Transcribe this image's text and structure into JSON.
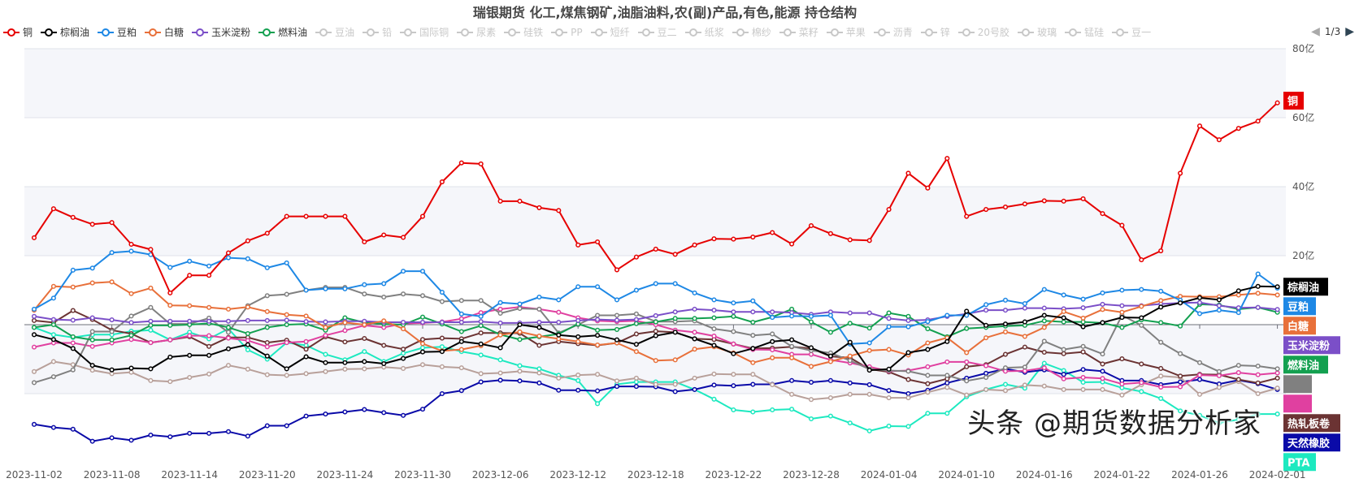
{
  "title": "瑞银期货 化工,煤焦钢矿,油脂油料,农(副)产品,有色,能源 持仓结构",
  "legend": {
    "items": [
      {
        "name": "铜",
        "active": true,
        "color": "#e60000"
      },
      {
        "name": "棕榈油",
        "active": true,
        "color": "#000000"
      },
      {
        "name": "豆粕",
        "active": true,
        "color": "#1e88e5"
      },
      {
        "name": "白糖",
        "active": true,
        "color": "#e8703a"
      },
      {
        "name": "玉米淀粉",
        "active": true,
        "color": "#7b4fc8"
      },
      {
        "name": "燃料油",
        "active": true,
        "color": "#13a050"
      },
      {
        "name": "豆油",
        "active": false
      },
      {
        "name": "铅",
        "active": false
      },
      {
        "name": "国际铜",
        "active": false
      },
      {
        "name": "尿素",
        "active": false
      },
      {
        "name": "硅铁",
        "active": false
      },
      {
        "name": "PP",
        "active": false
      },
      {
        "name": "短纤",
        "active": false
      },
      {
        "name": "豆二",
        "active": false
      },
      {
        "name": "纸浆",
        "active": false
      },
      {
        "name": "棉纱",
        "active": false
      },
      {
        "name": "菜籽",
        "active": false
      },
      {
        "name": "苹果",
        "active": false
      },
      {
        "name": "沥青",
        "active": false
      },
      {
        "name": "锌",
        "active": false
      },
      {
        "name": "20号胶",
        "active": false
      },
      {
        "name": "玻璃",
        "active": false
      },
      {
        "name": "锰硅",
        "active": false
      },
      {
        "name": "豆一",
        "active": false
      }
    ],
    "page": "1/3",
    "prev_icon": "triangle-left-icon",
    "next_icon": "triangle-right-icon"
  },
  "watermark": "头条 @期货数据分析家",
  "chart_data": {
    "type": "line",
    "title": "瑞银期货 化工,煤焦钢矿,油脂油料,农(副)产品,有色,能源 持仓结构",
    "ylim": [
      -40,
      80
    ],
    "y_ticks": [
      "80亿",
      "60亿",
      "40亿",
      "20亿"
    ],
    "y_tick_values": [
      80,
      60,
      40,
      20
    ],
    "y_axis_position": "right",
    "grid": true,
    "legend_position": "top",
    "x": [
      "2023-11-02",
      "2023-11-03",
      "2023-11-06",
      "2023-11-07",
      "2023-11-08",
      "2023-11-09",
      "2023-11-10",
      "2023-11-13",
      "2023-11-14",
      "2023-11-15",
      "2023-11-16",
      "2023-11-17",
      "2023-11-20",
      "2023-11-21",
      "2023-11-22",
      "2023-11-23",
      "2023-11-24",
      "2023-11-27",
      "2023-11-28",
      "2023-11-29",
      "2023-11-30",
      "2023-12-01",
      "2023-12-04",
      "2023-12-05",
      "2023-12-06",
      "2023-12-07",
      "2023-12-08",
      "2023-12-11",
      "2023-12-12",
      "2023-12-13",
      "2023-12-14",
      "2023-12-15",
      "2023-12-18",
      "2023-12-19",
      "2023-12-20",
      "2023-12-21",
      "2023-12-22",
      "2023-12-25",
      "2023-12-26",
      "2023-12-27",
      "2023-12-28",
      "2023-12-29",
      "2024-01-02",
      "2024-01-03",
      "2024-01-04",
      "2024-01-05",
      "2024-01-08",
      "2024-01-09",
      "2024-01-10",
      "2024-01-11",
      "2024-01-12",
      "2024-01-15",
      "2024-01-16",
      "2024-01-17",
      "2024-01-18",
      "2024-01-19",
      "2024-01-22",
      "2024-01-23",
      "2024-01-24",
      "2024-01-25",
      "2024-01-26",
      "2024-01-29",
      "2024-01-30",
      "2024-01-31",
      "2024-02-01"
    ],
    "x_tick_every": 4,
    "series": [
      {
        "name": "铜",
        "end_label": "铜",
        "color": "#e60000",
        "values": [
          25.2,
          33.6,
          31.1,
          29.1,
          29.6,
          23.3,
          21.8,
          9.2,
          14.3,
          14.3,
          20.8,
          24.3,
          26.5,
          31.4,
          31.4,
          31.4,
          31.4,
          24.0,
          26.0,
          25.3,
          31.4,
          41.4,
          46.9,
          46.6,
          35.8,
          35.8,
          33.9,
          33.1,
          23.1,
          24.0,
          15.9,
          19.6,
          21.9,
          20.4,
          23.1,
          24.9,
          24.8,
          25.4,
          26.7,
          23.4,
          28.7,
          26.4,
          24.6,
          24.4,
          33.4,
          43.9,
          39.6,
          48.2,
          31.4,
          33.4,
          34.1,
          35.0,
          35.9,
          35.8,
          36.5,
          32.2,
          28.8,
          18.8,
          21.4,
          43.9,
          57.6,
          53.6,
          56.9,
          59.0,
          64.3
        ]
      },
      {
        "name": "棕榈油",
        "end_label": "棕榈油",
        "color": "#000000",
        "values": [
          -2.9,
          -4.3,
          -6.9,
          -11.8,
          -13.1,
          -12.6,
          -12.8,
          -9.4,
          -8.9,
          -8.9,
          -7.0,
          -5.8,
          -9.1,
          -12.8,
          -9.3,
          -11.0,
          -11.0,
          -10.7,
          -11.3,
          -9.8,
          -7.9,
          -7.8,
          -4.9,
          -5.6,
          -6.7,
          0,
          -0.8,
          -3.0,
          -3.5,
          -3.1,
          -4.4,
          -5.7,
          -3.2,
          -2.2,
          -4.1,
          -6.0,
          -8.4,
          -6.9,
          -4.9,
          -4.4,
          -6.7,
          -9.1,
          -5.1,
          -13.2,
          -12.9,
          -8.1,
          -7.2,
          -4.9,
          3.9,
          -0.2,
          0.2,
          0.8,
          2.7,
          2.0,
          -0.6,
          0.6,
          2.1,
          2.0,
          5.1,
          6.3,
          7.8,
          7.2,
          9.8,
          11.1,
          11.0
        ]
      },
      {
        "name": "豆粕",
        "end_label": "豆粕",
        "color": "#1e88e5",
        "values": [
          4.5,
          7.7,
          15.8,
          16.4,
          20.9,
          21.3,
          20.3,
          16.6,
          18.4,
          17.0,
          19.4,
          19.1,
          16.5,
          17.9,
          10.0,
          10.4,
          10.4,
          11.6,
          11.9,
          15.5,
          15.5,
          9.4,
          3.1,
          2.4,
          6.4,
          6.0,
          8.0,
          7.2,
          11.0,
          11.0,
          7.2,
          10.0,
          11.9,
          11.9,
          9.2,
          7.2,
          6.3,
          6.9,
          2.1,
          2.5,
          2.4,
          2.7,
          -5.6,
          -5.3,
          -0.6,
          -0.6,
          0.9,
          2.7,
          2.7,
          5.8,
          7.1,
          6.1,
          10.2,
          8.6,
          7.4,
          9.2,
          10.0,
          10.2,
          9.7,
          7.1,
          3.2,
          4.2,
          3.5,
          14.7,
          10.6
        ]
      },
      {
        "name": "白糖",
        "end_label": "白糖",
        "color": "#e8703a",
        "values": [
          4.2,
          11.1,
          10.9,
          12.1,
          12.4,
          9.0,
          10.6,
          5.6,
          5.5,
          5.0,
          4.5,
          5.1,
          3.8,
          2.9,
          2.5,
          -0.8,
          0.6,
          0,
          1.1,
          -1.2,
          -5.5,
          -7.6,
          -7.2,
          -6.1,
          -3.0,
          -2.1,
          -3.3,
          -4.1,
          -4.9,
          -5.9,
          -5.3,
          -7.8,
          -10.4,
          -10.2,
          -7.1,
          -6.4,
          -8.2,
          -11.0,
          -9.6,
          -9.6,
          -12.1,
          -10.7,
          -9.1,
          -7.5,
          -7.2,
          -8.8,
          -5.3,
          -3.8,
          -8.1,
          -3.8,
          -2.1,
          -3.4,
          -0.8,
          3.8,
          1.9,
          4.4,
          3.6,
          5.3,
          7.0,
          8.2,
          8.1,
          8.1,
          8.6,
          9.1,
          8.6
        ]
      },
      {
        "name": "玉米淀粉",
        "end_label": "玉米淀粉",
        "color": "#7b4fc8",
        "values": [
          2.4,
          1.5,
          1.3,
          2.0,
          1.4,
          0.6,
          1.0,
          1.0,
          1.0,
          1.0,
          1.0,
          1.2,
          1.2,
          1.3,
          0.9,
          0.8,
          1.0,
          1.0,
          0.7,
          0.7,
          0.7,
          0.7,
          0.7,
          0.9,
          0.5,
          0.5,
          0.7,
          0.7,
          1.2,
          1.5,
          1.3,
          1.5,
          2.6,
          3.7,
          4.5,
          4.2,
          3.7,
          3.7,
          3.7,
          3.5,
          3.0,
          3.7,
          3.4,
          3.4,
          1.8,
          1.2,
          1.4,
          2.4,
          3.1,
          4.2,
          4.2,
          4.8,
          4.8,
          4.6,
          4.9,
          5.9,
          5.5,
          5.5,
          6.0,
          6.3,
          6.4,
          5.5,
          4.9,
          5.0,
          4.4
        ]
      },
      {
        "name": "燃料油",
        "end_label": "燃料油",
        "color": "#13a050",
        "values": [
          -0.8,
          0,
          -3.5,
          -4.4,
          -4.4,
          -3.1,
          -0.2,
          -0.2,
          0,
          0.4,
          -0.8,
          -2.6,
          -0.8,
          0,
          0.2,
          -1.6,
          2.0,
          0.6,
          0.2,
          0,
          2.2,
          0.2,
          -2.0,
          -0.3,
          -2.9,
          -4.3,
          -3.5,
          -2.7,
          0.2,
          -1.6,
          -1.4,
          0.3,
          0.8,
          1.8,
          1.8,
          2.0,
          2.4,
          0.7,
          2.2,
          4.5,
          0.8,
          -2.2,
          0.4,
          -1.0,
          3.4,
          2.4,
          -1.2,
          -3.5,
          -1.1,
          -0.8,
          -0.4,
          -0.2,
          1.1,
          0.8,
          0.8,
          0.5,
          -0.8,
          1.4,
          0.6,
          -0.4,
          5.9,
          5.7,
          4.5,
          5.0,
          3.6
        ]
      },
      {
        "name": "",
        "end_label": "",
        "color": "#808080",
        "values": [
          -16.8,
          -15.1,
          -13.1,
          -2.0,
          -2.0,
          2.5,
          5.0,
          0.2,
          0.2,
          1.9,
          -2.2,
          5.5,
          8.4,
          8.8,
          10.0,
          10.8,
          10.8,
          8.9,
          8.0,
          8.9,
          8.4,
          6.7,
          7.0,
          7.0,
          3.3,
          4.7,
          4.5,
          -2.4,
          0,
          2.7,
          2.7,
          3.1,
          0.9,
          0.9,
          1.1,
          -1.2,
          -2.0,
          -3.1,
          -2.7,
          -6.3,
          -7.5,
          -8.2,
          -10.4,
          -12.9,
          -13.3,
          -13.5,
          -14.7,
          -14.7,
          -16.3,
          -15.3,
          -12.5,
          -12.3,
          -4.8,
          -7.2,
          -6.3,
          -8.5,
          2.7,
          -0.2,
          -5.1,
          -8.4,
          -11.0,
          -13.6,
          -11.8,
          -12.0,
          -12.8
        ]
      },
      {
        "name": "",
        "end_label": "",
        "color": "#e040a0",
        "values": [
          -6.5,
          -5.3,
          -5.3,
          -6.3,
          -5.3,
          -4.3,
          -5.2,
          -4.4,
          -3.2,
          -3.2,
          -3.9,
          -4.6,
          -6.4,
          -5.2,
          -4.9,
          -3.1,
          -1.7,
          -0.2,
          -0.8,
          0.3,
          0.5,
          0.8,
          1.7,
          3.5,
          4.5,
          5.1,
          4.5,
          3.6,
          2.0,
          1.1,
          0.9,
          1.1,
          0,
          -1.6,
          -2.2,
          -3.3,
          -5.6,
          -7.2,
          -7.3,
          -8.6,
          -8.6,
          -10.2,
          -11.1,
          -12.2,
          -13.5,
          -13.3,
          -12.2,
          -10.8,
          -10.8,
          -11.9,
          -13.5,
          -13.4,
          -12.5,
          -15.7,
          -15.3,
          -15.6,
          -17.2,
          -16.8,
          -18.1,
          -18.0,
          -14.6,
          -14.8,
          -13.9,
          -14.5,
          -14.0
        ]
      },
      {
        "name": "",
        "end_label": "热轧板卷",
        "color": "#6b3333",
        "values": [
          1.2,
          0.6,
          4.1,
          1.5,
          -1.6,
          -2.6,
          -5.2,
          -4.4,
          -3.5,
          -6.3,
          -3.7,
          -3.7,
          -5.2,
          -4.5,
          -7.1,
          -3.5,
          -5.0,
          -4.0,
          -6.0,
          -7.1,
          -4.3,
          -3.9,
          -4.1,
          -2.4,
          -2.4,
          -2.5,
          -6.0,
          -4.9,
          -5.5,
          -6.0,
          -5.3,
          -2.7,
          -1.9,
          -2.2,
          -4.1,
          -4.3,
          -5.6,
          -6.9,
          -6.8,
          -6.4,
          -6.9,
          -9.2,
          -9.6,
          -12.9,
          -13.7,
          -15.9,
          -17.1,
          -15.7,
          -12.2,
          -11.6,
          -8.6,
          -6.5,
          -8.0,
          -8.4,
          -7.9,
          -11.4,
          -9.9,
          -11.4,
          -12.7,
          -14.9,
          -14.4,
          -14.5,
          -15.9,
          -16.9,
          -15.5
        ]
      },
      {
        "name": "",
        "end_label": "",
        "color": "#b8a09a",
        "values": [
          -13.6,
          -10.7,
          -11.6,
          -13.2,
          -14.2,
          -13.8,
          -16.2,
          -16.5,
          -15.3,
          -14.3,
          -11.8,
          -12.9,
          -14.5,
          -14.7,
          -14.2,
          -13.6,
          -12.9,
          -12.8,
          -12.3,
          -12.7,
          -11.6,
          -12.2,
          -12.5,
          -14.2,
          -14.0,
          -13.5,
          -14.0,
          -15.5,
          -14.6,
          -14.4,
          -16.3,
          -15.5,
          -17.3,
          -17.3,
          -15.5,
          -14.3,
          -14.4,
          -14.4,
          -17.4,
          -20.2,
          -21.7,
          -21.2,
          -20.2,
          -20.2,
          -21.2,
          -21.2,
          -19.6,
          -18.2,
          -20.4,
          -18.8,
          -19.1,
          -17.5,
          -17.8,
          -18.8,
          -18.8,
          -18.8,
          -20.4,
          -17.4,
          -14.9,
          -15.3,
          -20.2,
          -18.2,
          -16.5,
          -20.0,
          -18.4
        ]
      },
      {
        "name": "",
        "end_label": "天然橡胶",
        "color": "#0a0aa8",
        "values": [
          -28.9,
          -29.8,
          -30.3,
          -33.8,
          -32.8,
          -33.5,
          -32.0,
          -32.5,
          -31.5,
          -31.5,
          -31.0,
          -32.3,
          -29.3,
          -29.3,
          -26.5,
          -25.9,
          -25.3,
          -24.6,
          -25.5,
          -26.3,
          -24.5,
          -20.0,
          -19.1,
          -16.6,
          -16.1,
          -16.3,
          -16.9,
          -19.0,
          -19.0,
          -19.2,
          -17.9,
          -17.9,
          -18.0,
          -19.4,
          -18.8,
          -17.5,
          -17.7,
          -17.3,
          -17.3,
          -16.2,
          -16.7,
          -16.2,
          -16.9,
          -17.4,
          -19.1,
          -20.0,
          -19.0,
          -16.9,
          -15.5,
          -14.1,
          -12.8,
          -13.8,
          -13.1,
          -14.4,
          -13.0,
          -13.5,
          -16.2,
          -16.2,
          -17.4,
          -16.6,
          -15.9,
          -17.2,
          -16.1,
          -17.1,
          -18.8
        ]
      },
      {
        "name": "",
        "end_label": "PTA",
        "color": "#1de9c0",
        "values": [
          -0.8,
          -2.9,
          -3.7,
          -2.9,
          -2.9,
          -1.9,
          -1.6,
          -4.4,
          -2.2,
          -4.1,
          -1.2,
          -7.3,
          -10.0,
          -5.2,
          -6.0,
          -8.6,
          -10.2,
          -7.8,
          -10.7,
          -8.3,
          -6.7,
          -6.4,
          -7.8,
          -8.8,
          -10.2,
          -11.9,
          -12.8,
          -14.7,
          -16.2,
          -22.9,
          -17.3,
          -16.6,
          -16.6,
          -16.6,
          -18.8,
          -21.6,
          -24.7,
          -25.3,
          -24.7,
          -24.5,
          -27.3,
          -26.5,
          -28.5,
          -30.8,
          -29.4,
          -29.5,
          -25.7,
          -25.7,
          -20.9,
          -18.8,
          -17.3,
          -18.4,
          -11.2,
          -13.3,
          -16.7,
          -16.6,
          -18.3,
          -19.4,
          -21.4,
          -25.0,
          -26.3,
          -28.5,
          -27.5,
          -25.9,
          -25.9
        ]
      }
    ]
  }
}
